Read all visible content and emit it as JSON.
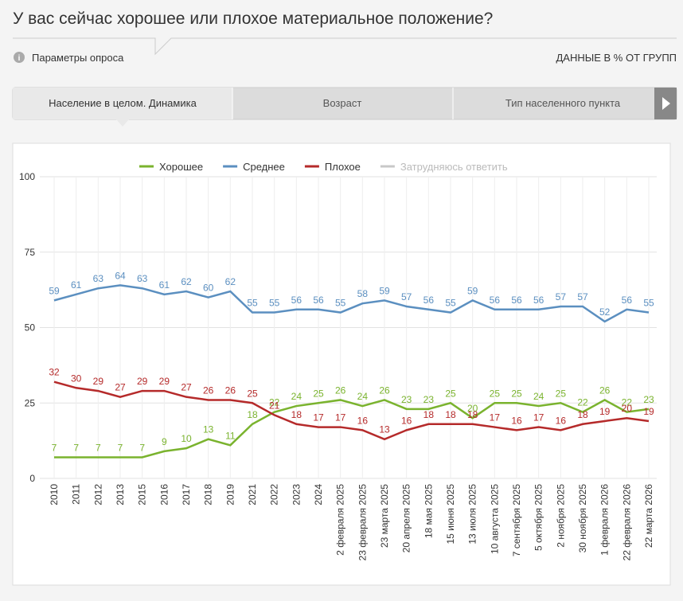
{
  "header": {
    "title": "У вас сейчас хорошее или плохое материальное положение?",
    "params": "Параметры опроса",
    "units_note": "ДАННЫЕ В % ОТ ГРУПП"
  },
  "tabs": [
    "Население в целом. Динамика",
    "Возраст",
    "Тип населенного пункта"
  ],
  "chart_data": {
    "type": "line",
    "categories": [
      "2010",
      "2011",
      "2012",
      "2013",
      "2015",
      "2016",
      "2017",
      "2018",
      "2019",
      "2021",
      "2022",
      "2023",
      "2024",
      "2 февраля 2025",
      "23 февраля 2025",
      "23 марта 2025",
      "20 апреля 2025",
      "18 мая 2025",
      "15 июня 2025",
      "13 июля 2025",
      "10 августа 2025",
      "7 сентября 2025",
      "5 октября 2025",
      "2 ноября 2025",
      "30 ноября 2025",
      "1 февраля 2026",
      "22 февраля 2026",
      "22 марта 2026"
    ],
    "series": [
      {
        "name": "Хорошее",
        "color": "#7ab32e",
        "values": [
          7,
          7,
          7,
          7,
          7,
          9,
          10,
          13,
          11,
          18,
          22,
          24,
          25,
          26,
          24,
          26,
          23,
          23,
          25,
          20,
          25,
          25,
          24,
          25,
          22,
          26,
          22,
          23
        ]
      },
      {
        "name": "Среднее",
        "color": "#5b8fc0",
        "values": [
          59,
          61,
          63,
          64,
          63,
          61,
          62,
          60,
          62,
          55,
          55,
          56,
          56,
          55,
          58,
          59,
          57,
          56,
          55,
          59,
          56,
          56,
          56,
          57,
          57,
          52,
          56,
          55
        ]
      },
      {
        "name": "Плохое",
        "color": "#b52a2a",
        "values": [
          32,
          30,
          29,
          27,
          29,
          29,
          27,
          26,
          26,
          25,
          21,
          18,
          17,
          17,
          16,
          13,
          16,
          18,
          18,
          18,
          17,
          16,
          17,
          16,
          18,
          19,
          20,
          19
        ]
      },
      {
        "name": "Затрудняюсь ответить",
        "color": "#c8c8c8",
        "hidden": true
      }
    ],
    "ylim": [
      0,
      100
    ],
    "yticks": [
      0,
      25,
      50,
      75,
      100
    ],
    "grid": true,
    "legend": "top"
  }
}
